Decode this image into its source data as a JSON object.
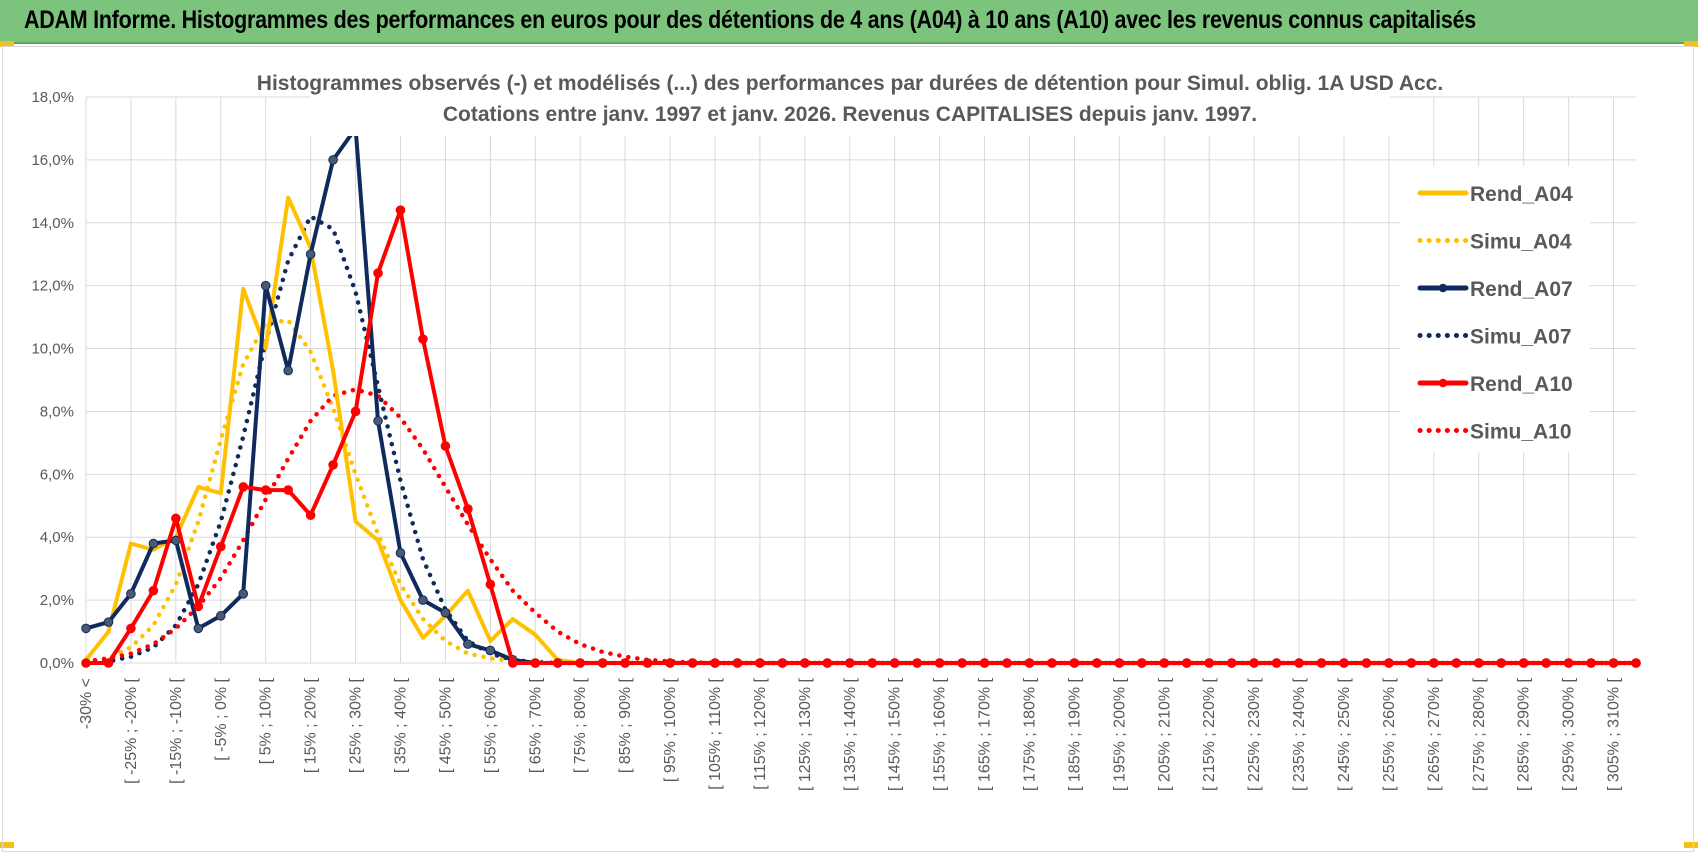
{
  "header": {
    "title": "ADAM Informe. Histogrammes des performances en euros pour des détentions de 4 ans (A04) à 10 ans (A10) avec les revenus connus capitalisés"
  },
  "chart_data": {
    "type": "line",
    "title": "Histogrammes observés (-) et modélisés (...) des performances par durées de détention pour Simul. oblig. 1A USD Acc.",
    "subtitle": "Cotations entre janv. 1997 et janv. 2026. Revenus CAPITALISES depuis janv. 1997.",
    "xlabel": "",
    "ylabel": "",
    "ylim": [
      0,
      0.18
    ],
    "yticks": [
      "0,0%",
      "2,0%",
      "4,0%",
      "6,0%",
      "8,0%",
      "10,0%",
      "12,0%",
      "14,0%",
      "16,0%",
      "18,0%"
    ],
    "grid": true,
    "legend_position": "right",
    "x_labels": [
      "-30% <",
      "[ -25% ; -20% [",
      "[ -15% ; -10% [",
      "[ -5% ; 0% [",
      "[ 5% ; 10% [",
      "[ 15% ; 20% [",
      "[ 25% ; 30% [",
      "[ 35% ; 40% [",
      "[ 45% ; 50% [",
      "[ 55% ; 60% [",
      "[ 65% ; 70% [",
      "[ 75% ; 80% [",
      "[ 85% ; 90% [",
      "[ 95% ; 100% [",
      "[ 105% ; 110% [",
      "[ 115% ; 120% [",
      "[ 125% ; 130% [",
      "[ 135% ; 140% [",
      "[ 145% ; 150% [",
      "[ 155% ; 160% [",
      "[ 165% ; 170% [",
      "[ 175% ; 180% [",
      "[ 185% ; 190% [",
      "[ 195% ; 200% [",
      "[ 205% ; 210% [",
      "[ 215% ; 220% [",
      "[ 225% ; 230% [",
      "[ 235% ; 240% [",
      "[ 245% ; 250% [",
      "[ 255% ; 260% [",
      "[ 265% ; 270% [",
      "[ 275% ; 280% [",
      "[ 285% ; 290% [",
      "[ 295% ; 300% [",
      "[ 305% ; 310% ["
    ],
    "series": [
      {
        "name": "Rend_A04",
        "color": "#ffc000",
        "style": "solid",
        "markers": false,
        "values": [
          0.001,
          0.01,
          0.038,
          0.036,
          0.04,
          0.056,
          0.054,
          0.119,
          0.1,
          0.148,
          0.132,
          0.093,
          0.045,
          0.039,
          0.02,
          0.008,
          0.015,
          0.023,
          0.007,
          0.014,
          0.009,
          0.001,
          0,
          0,
          0,
          0,
          0,
          0,
          0,
          0,
          0,
          0,
          0,
          0,
          0,
          0,
          0,
          0,
          0,
          0,
          0,
          0,
          0,
          0,
          0,
          0,
          0,
          0,
          0,
          0,
          0,
          0,
          0,
          0,
          0,
          0,
          0,
          0,
          0,
          0,
          0,
          0,
          0,
          0,
          0,
          0,
          0,
          0,
          0,
          0
        ]
      },
      {
        "name": "Simu_A04",
        "color": "#ffc000",
        "style": "dotted",
        "markers": false,
        "values": [
          0.0003,
          0.0015,
          0.005,
          0.012,
          0.025,
          0.045,
          0.071,
          0.095,
          0.108,
          0.109,
          0.099,
          0.081,
          0.06,
          0.041,
          0.025,
          0.014,
          0.007,
          0.003,
          0.0015,
          0.0006,
          0.0002,
          0,
          0,
          0,
          0,
          0,
          0,
          0,
          0,
          0,
          0,
          0,
          0,
          0,
          0,
          0,
          0,
          0,
          0,
          0,
          0,
          0,
          0,
          0,
          0,
          0,
          0,
          0,
          0,
          0,
          0,
          0,
          0,
          0,
          0,
          0,
          0,
          0,
          0,
          0,
          0,
          0,
          0,
          0,
          0,
          0,
          0,
          0,
          0,
          0
        ]
      },
      {
        "name": "Rend_A07",
        "color": "#0f2a5c",
        "style": "solid",
        "markers": true,
        "values": [
          0.011,
          0.013,
          0.022,
          0.038,
          0.039,
          0.011,
          0.015,
          0.022,
          0.12,
          0.093,
          0.13,
          0.16,
          0.17,
          0.077,
          0.035,
          0.02,
          0.016,
          0.006,
          0.004,
          0.001,
          0,
          0,
          0,
          0,
          0,
          0,
          0,
          0,
          0,
          0,
          0,
          0,
          0,
          0,
          0,
          0,
          0,
          0,
          0,
          0,
          0,
          0,
          0,
          0,
          0,
          0,
          0,
          0,
          0,
          0,
          0,
          0,
          0,
          0,
          0,
          0,
          0,
          0,
          0,
          0,
          0,
          0,
          0,
          0,
          0,
          0,
          0,
          0,
          0,
          0
        ]
      },
      {
        "name": "Simu_A07",
        "color": "#0f2a5c",
        "style": "dotted",
        "markers": false,
        "values": [
          0.0001,
          0.0005,
          0.002,
          0.005,
          0.012,
          0.025,
          0.045,
          0.072,
          0.102,
          0.128,
          0.142,
          0.138,
          0.118,
          0.088,
          0.058,
          0.033,
          0.017,
          0.007,
          0.003,
          0.001,
          0.0003,
          0,
          0,
          0,
          0,
          0,
          0,
          0,
          0,
          0,
          0,
          0,
          0,
          0,
          0,
          0,
          0,
          0,
          0,
          0,
          0,
          0,
          0,
          0,
          0,
          0,
          0,
          0,
          0,
          0,
          0,
          0,
          0,
          0,
          0,
          0,
          0,
          0,
          0,
          0,
          0,
          0,
          0,
          0,
          0,
          0,
          0,
          0,
          0,
          0
        ]
      },
      {
        "name": "Rend_A10",
        "color": "#ff0000",
        "style": "solid",
        "markers": true,
        "values": [
          0,
          0,
          0.011,
          0.023,
          0.046,
          0.018,
          0.037,
          0.056,
          0.055,
          0.055,
          0.047,
          0.063,
          0.08,
          0.124,
          0.144,
          0.103,
          0.069,
          0.049,
          0.025,
          0,
          0,
          0,
          0,
          0,
          0,
          0,
          0,
          0,
          0,
          0,
          0,
          0,
          0,
          0,
          0,
          0,
          0,
          0,
          0,
          0,
          0,
          0,
          0,
          0,
          0,
          0,
          0,
          0,
          0,
          0,
          0,
          0,
          0,
          0,
          0,
          0,
          0,
          0,
          0,
          0,
          0,
          0,
          0,
          0,
          0,
          0,
          0,
          0,
          0,
          0
        ]
      },
      {
        "name": "Simu_A10",
        "color": "#ff0000",
        "style": "dotted",
        "markers": false,
        "values": [
          0.0005,
          0.0015,
          0.003,
          0.006,
          0.011,
          0.018,
          0.027,
          0.039,
          0.052,
          0.065,
          0.077,
          0.085,
          0.087,
          0.085,
          0.078,
          0.068,
          0.056,
          0.044,
          0.033,
          0.023,
          0.016,
          0.01,
          0.006,
          0.0035,
          0.002,
          0.001,
          0.0005,
          0.0002,
          0,
          0,
          0,
          0,
          0,
          0,
          0,
          0,
          0,
          0,
          0,
          0,
          0,
          0,
          0,
          0,
          0,
          0,
          0,
          0,
          0,
          0,
          0,
          0,
          0,
          0,
          0,
          0,
          0,
          0,
          0,
          0,
          0,
          0,
          0,
          0,
          0,
          0,
          0,
          0,
          0,
          0
        ]
      }
    ]
  }
}
